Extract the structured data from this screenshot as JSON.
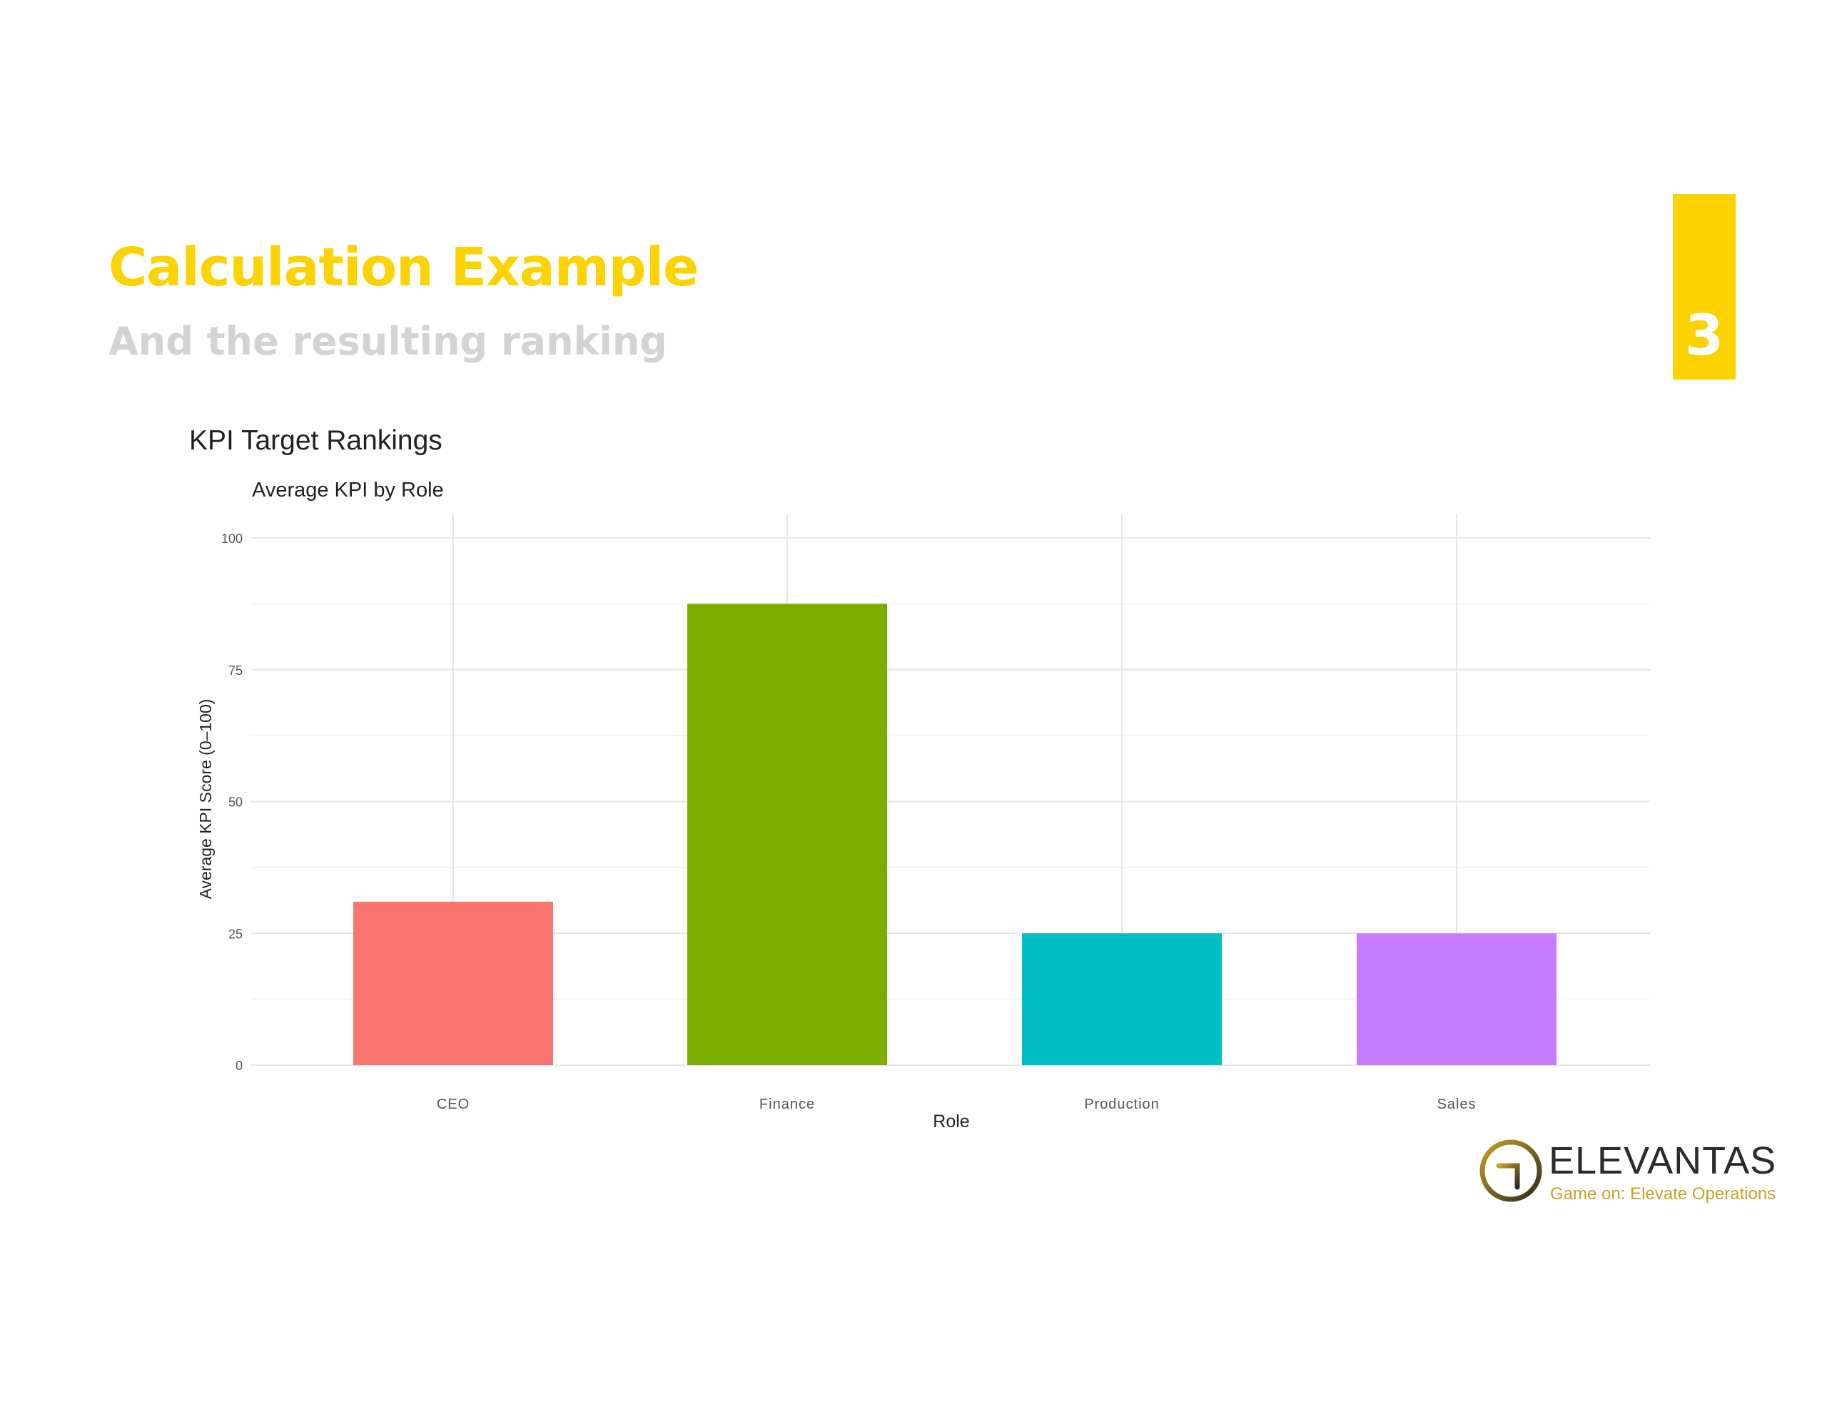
{
  "slide": {
    "title": "Calculation Example",
    "subtitle": "And the resulting ranking",
    "page_number": "3",
    "accent_color": "#FCD200"
  },
  "logo": {
    "name": "ELEVANTAS",
    "tagline": "Game on: Elevate Operations"
  },
  "chart_data": {
    "type": "bar",
    "title": "KPI Target Rankings",
    "subtitle": "Average KPI by Role",
    "xlabel": "Role",
    "ylabel": "Average KPI Score (0–100)",
    "categories": [
      "CEO",
      "Finance",
      "Production",
      "Sales"
    ],
    "values": [
      31,
      87.5,
      25,
      25
    ],
    "colors": [
      "#F8766D",
      "#7CAE00",
      "#00BFC4",
      "#C77CFF"
    ],
    "ylim": [
      0,
      100
    ],
    "yticks": [
      0,
      25,
      50,
      75,
      100
    ],
    "grid": true,
    "legend": "none"
  }
}
